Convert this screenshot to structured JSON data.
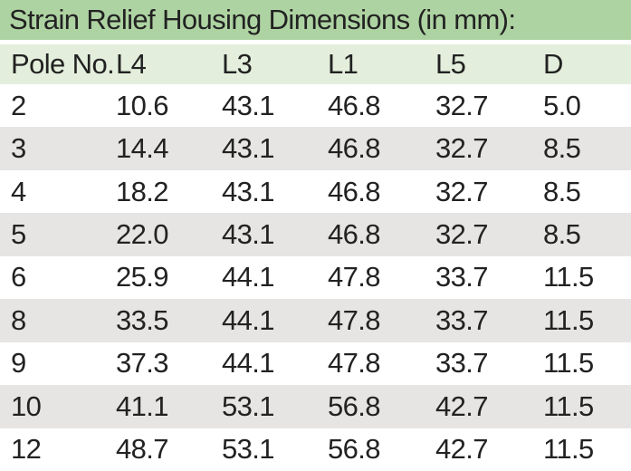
{
  "title": "Strain Relief Housing Dimensions (in mm):",
  "table": {
    "columns": [
      "Pole No.",
      "L4",
      "L3",
      "L1",
      "L5",
      "D"
    ],
    "rows": [
      [
        "2",
        "10.6",
        "43.1",
        "46.8",
        "32.7",
        "5.0"
      ],
      [
        "3",
        "14.4",
        "43.1",
        "46.8",
        "32.7",
        "8.5"
      ],
      [
        "4",
        "18.2",
        "43.1",
        "46.8",
        "32.7",
        "8.5"
      ],
      [
        "5",
        "22.0",
        "43.1",
        "46.8",
        "32.7",
        "8.5"
      ],
      [
        "6",
        "25.9",
        "44.1",
        "47.8",
        "33.7",
        "11.5"
      ],
      [
        "8",
        "33.5",
        "44.1",
        "47.8",
        "33.7",
        "11.5"
      ],
      [
        "9",
        "37.3",
        "44.1",
        "47.8",
        "33.7",
        "11.5"
      ],
      [
        "10",
        "41.1",
        "53.1",
        "56.8",
        "42.7",
        "11.5"
      ],
      [
        "12",
        "48.7",
        "53.1",
        "56.8",
        "42.7",
        "11.5"
      ]
    ],
    "units": "mm"
  },
  "colors": {
    "title_bar_bg": "#aed3a2",
    "header_bg": "#e3efdc",
    "row_bg": "#ffffff",
    "row_alt_bg": "#e7e5e3",
    "text": "#222222"
  }
}
